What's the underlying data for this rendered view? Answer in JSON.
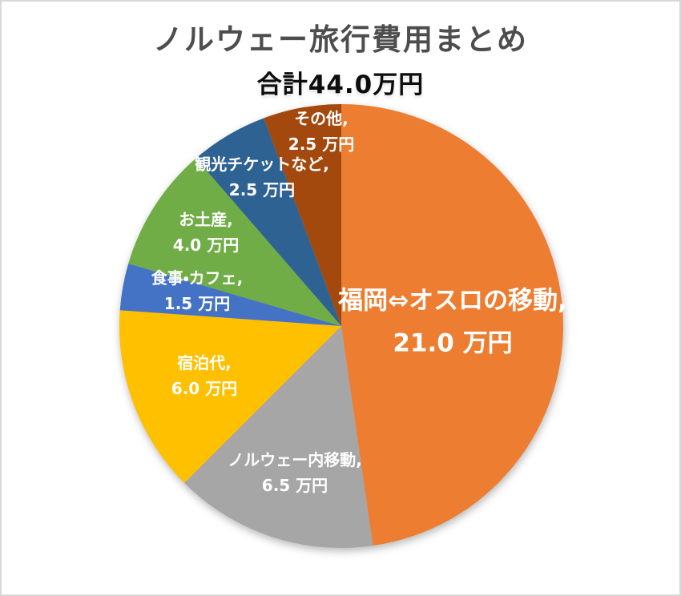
{
  "chart_data": {
    "type": "pie",
    "title": "ノルウェー旅行費用まとめ",
    "subtitle": "合計44.0万円",
    "total_value": 44.0,
    "unit": "万円",
    "label_format": "name, value 万円",
    "label_text_color": "#FFFFFF",
    "start_angle_deg": 0,
    "direction": "clockwise",
    "legend": "none",
    "slices": [
      {
        "name": "fukuoka-oslo-travel",
        "label": "福岡⇔オスロの移動",
        "value": 21.0,
        "color": "#ED7D31"
      },
      {
        "name": "norway-domestic-travel",
        "label": "ノルウェー内移動",
        "value": 6.5,
        "color": "#A6A6A6"
      },
      {
        "name": "lodging",
        "label": "宿泊代",
        "value": 6.0,
        "color": "#FFC000"
      },
      {
        "name": "meals-cafe",
        "label": "食事・カフェ",
        "value": 1.5,
        "color": "#4472C4"
      },
      {
        "name": "souvenirs",
        "label": "お土産",
        "value": 4.0,
        "color": "#70AD47"
      },
      {
        "name": "sightseeing-tickets",
        "label": "観光チケットなど",
        "value": 2.5,
        "color": "#2D6293"
      },
      {
        "name": "others",
        "label": "その他",
        "value": 2.5,
        "color": "#A3490E"
      }
    ]
  },
  "page": {
    "background": "#FFFFFF",
    "border_color": "#D8D8D8",
    "title_color": "#4D4D4D",
    "subtitle_color": "#0D0D0D"
  }
}
